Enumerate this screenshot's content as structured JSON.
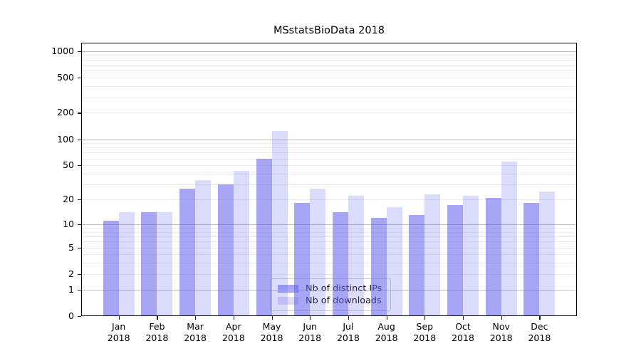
{
  "chart_data": {
    "type": "bar",
    "title": "MSstatsBioData 2018",
    "categories": [
      "Jan 2018",
      "Feb 2018",
      "Mar 2018",
      "Apr 2018",
      "May 2018",
      "Jun 2018",
      "Jul 2018",
      "Aug 2018",
      "Sep 2018",
      "Oct 2018",
      "Nov 2018",
      "Dec 2018"
    ],
    "series": [
      {
        "name": "Nb of distinct IPs",
        "values": [
          11,
          14,
          27,
          30,
          60,
          18,
          14,
          12,
          13,
          17,
          21,
          18
        ],
        "color": "rgba(98,98,238,0.57)"
      },
      {
        "name": "Nb of downloads",
        "values": [
          14,
          14,
          34,
          43,
          125,
          27,
          22,
          16,
          23,
          22,
          55,
          25
        ],
        "color": "rgba(98,98,238,0.23)"
      }
    ],
    "yscale": "log1p",
    "ylim": [
      0,
      1250
    ],
    "y_ticks": [
      0,
      1,
      2,
      5,
      10,
      20,
      50,
      100,
      200,
      500,
      1000
    ],
    "grid": {
      "show": true,
      "major_at": [
        1,
        10,
        100,
        1000
      ],
      "minor_at": [
        2,
        3,
        4,
        5,
        6,
        7,
        8,
        9,
        20,
        30,
        40,
        50,
        60,
        70,
        80,
        90,
        200,
        300,
        400,
        500,
        600,
        700,
        800,
        900
      ],
      "major_color": "#bdbdbd",
      "minor_color": "#ebebeb"
    },
    "legend": {
      "position": "lower center",
      "entries": [
        "Nb of distinct IPs",
        "Nb of downloads"
      ]
    },
    "xlabel": "",
    "ylabel": ""
  },
  "colors": {
    "axis": "#000000",
    "tick": "#1a1a1a",
    "text": "#000000",
    "legend_border": "#cccccc",
    "legend_background": "#ffffff",
    "plot_background": "#ffffff"
  }
}
